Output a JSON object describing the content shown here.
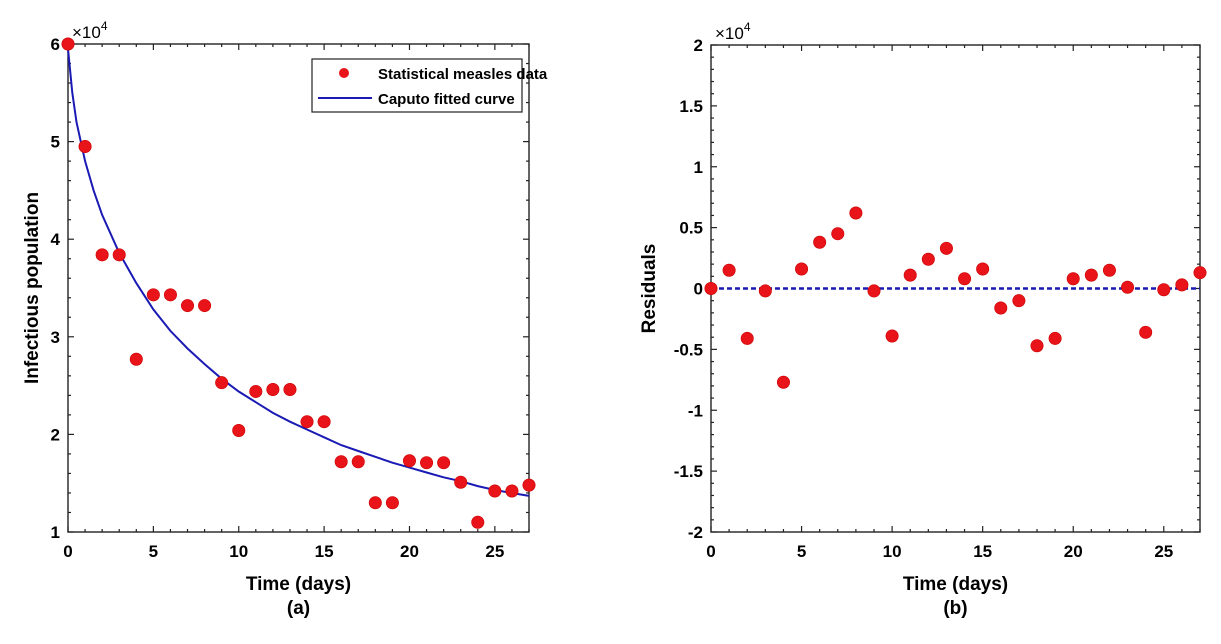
{
  "chart_data": [
    {
      "type": "scatter",
      "panel_label": "(a)",
      "xlabel": "Time (days)",
      "ylabel": "Infectious population",
      "y_multiplier": "×10",
      "y_multiplier_exp": "4",
      "xlim": [
        0,
        27
      ],
      "ylim": [
        1,
        6
      ],
      "xticks": [
        0,
        5,
        10,
        15,
        20,
        25
      ],
      "xtick_labels": [
        "0",
        "5",
        "10",
        "15",
        "20",
        "25"
      ],
      "yticks": [
        1,
        2,
        3,
        4,
        5,
        6
      ],
      "ytick_labels": [
        "1",
        "2",
        "3",
        "4",
        "5",
        "6"
      ],
      "legend": {
        "placement": "top-right",
        "entries": [
          "Statistical measles data",
          "Caputo fitted curve"
        ]
      },
      "colors": {
        "data": "#e8141a",
        "curve": "#1a1ab4"
      },
      "series": [
        {
          "name": "Statistical measles data",
          "kind": "markers",
          "x": [
            0,
            1,
            2,
            3,
            4,
            5,
            6,
            7,
            8,
            9,
            10,
            11,
            12,
            13,
            14,
            15,
            16,
            17,
            18,
            19,
            20,
            21,
            22,
            23,
            24,
            25,
            26,
            27
          ],
          "y": [
            6.0,
            4.95,
            3.84,
            3.84,
            2.77,
            3.43,
            3.43,
            3.32,
            3.32,
            2.53,
            2.04,
            2.44,
            2.46,
            2.46,
            2.13,
            2.13,
            1.72,
            1.72,
            1.3,
            1.3,
            1.73,
            1.71,
            1.71,
            1.51,
            1.1,
            1.42,
            1.42,
            1.48
          ]
        },
        {
          "name": "Caputo fitted curve",
          "kind": "line",
          "x": [
            0,
            0.25,
            0.5,
            1,
            1.5,
            2,
            3,
            4,
            5,
            6,
            7,
            8,
            9,
            10,
            11,
            12,
            13,
            14,
            15,
            16,
            17,
            18,
            19,
            20,
            21,
            22,
            23,
            24,
            25,
            26,
            27
          ],
          "y": [
            5.95,
            5.5,
            5.2,
            4.8,
            4.5,
            4.25,
            3.86,
            3.55,
            3.28,
            3.06,
            2.88,
            2.72,
            2.57,
            2.44,
            2.33,
            2.22,
            2.13,
            2.05,
            1.97,
            1.89,
            1.83,
            1.77,
            1.71,
            1.66,
            1.61,
            1.56,
            1.52,
            1.47,
            1.43,
            1.4,
            1.37
          ]
        }
      ]
    },
    {
      "type": "scatter",
      "panel_label": "(b)",
      "xlabel": "Time (days)",
      "ylabel": "Residuals",
      "y_multiplier": "×10",
      "y_multiplier_exp": "4",
      "xlim": [
        0,
        27
      ],
      "ylim": [
        -2,
        2
      ],
      "xticks": [
        0,
        5,
        10,
        15,
        20,
        25
      ],
      "xtick_labels": [
        "0",
        "5",
        "10",
        "15",
        "20",
        "25"
      ],
      "yticks": [
        -2,
        -1.5,
        -1,
        -0.5,
        0,
        0.5,
        1,
        1.5,
        2
      ],
      "ytick_labels": [
        "-2",
        "-1.5",
        "-1",
        "-0.5",
        "0",
        "0.5",
        "1",
        "1.5",
        "2"
      ],
      "colors": {
        "data": "#e8141a",
        "zero_line": "#1a1ab4"
      },
      "series": [
        {
          "name": "Residuals",
          "kind": "markers",
          "x": [
            0,
            1,
            2,
            3,
            4,
            5,
            6,
            7,
            8,
            9,
            10,
            11,
            12,
            13,
            14,
            15,
            16,
            17,
            18,
            19,
            20,
            21,
            22,
            23,
            24,
            25,
            26,
            27
          ],
          "y": [
            0,
            0.15,
            -0.41,
            -0.02,
            -0.77,
            0.16,
            0.38,
            0.45,
            0.62,
            -0.02,
            -0.39,
            0.11,
            0.24,
            0.33,
            0.08,
            0.16,
            -0.16,
            -0.1,
            -0.47,
            -0.41,
            0.08,
            0.11,
            0.15,
            0.01,
            -0.36,
            -0.01,
            0.03,
            0.13
          ]
        },
        {
          "name": "Zero line",
          "kind": "dashed-line",
          "x": [
            0,
            27
          ],
          "y": [
            0,
            0
          ]
        }
      ]
    }
  ]
}
